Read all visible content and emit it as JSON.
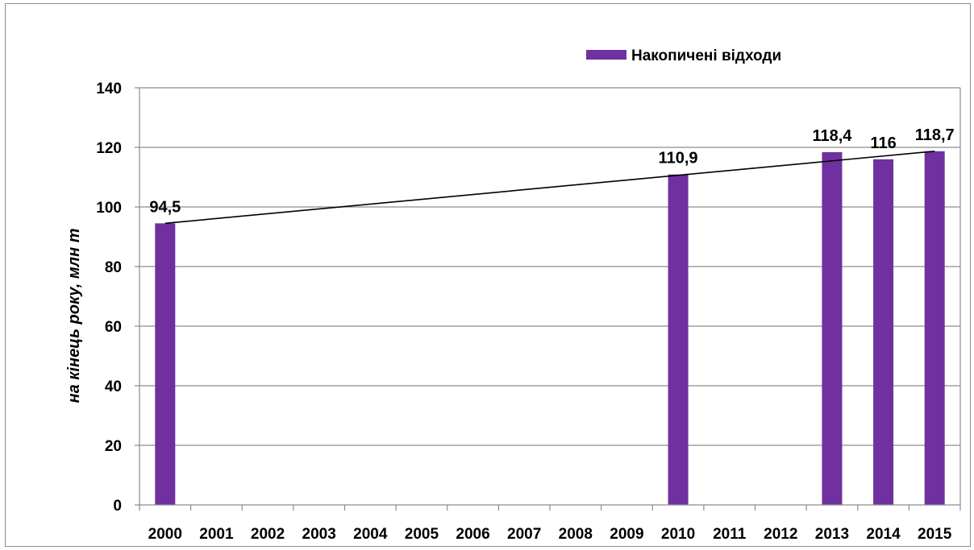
{
  "chart_data": {
    "type": "bar",
    "title": "",
    "xlabel": "",
    "ylabel": "на кінець року, млн т",
    "categories": [
      "2000",
      "2001",
      "2002",
      "2003",
      "2004",
      "2005",
      "2006",
      "2007",
      "2008",
      "2009",
      "2010",
      "2011",
      "2012",
      "2013",
      "2014",
      "2015"
    ],
    "series": [
      {
        "name": "Накопичені відходи",
        "color": "#7030a0",
        "values": [
          94.5,
          null,
          null,
          null,
          null,
          null,
          null,
          null,
          null,
          null,
          110.9,
          null,
          null,
          118.4,
          116,
          118.7
        ],
        "data_labels": [
          "94,5",
          "",
          "",
          "",
          "",
          "",
          "",
          "",
          "",
          "",
          "110,9",
          "",
          "",
          "118,4",
          "116",
          "118,7"
        ]
      }
    ],
    "trendline": {
      "type": "linear",
      "color": "#000000",
      "from": {
        "x": "2000",
        "y": 94.5
      },
      "to": {
        "x": "2015",
        "y": 118.7
      }
    },
    "ylim": [
      0,
      140
    ],
    "yticks": [
      0,
      20,
      40,
      60,
      80,
      100,
      120,
      140
    ],
    "grid": true,
    "legend": {
      "position": "top-right",
      "entries": [
        "Накопичені відходи"
      ]
    }
  }
}
